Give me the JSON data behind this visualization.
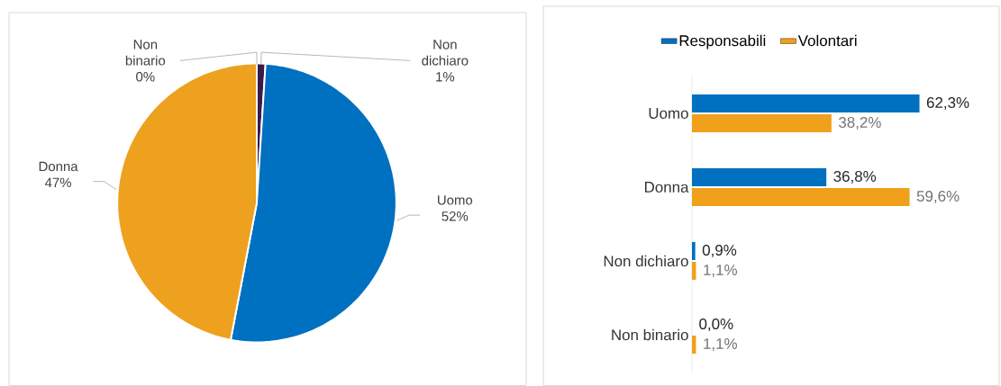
{
  "chart_data": [
    {
      "type": "pie",
      "categories": [
        "Non dichiaro",
        "Uomo",
        "Donna",
        "Non binario"
      ],
      "values": [
        1,
        52,
        47,
        0
      ],
      "colors": [
        "#3a1a4a",
        "#0070c0",
        "#eda11f",
        "#e0e0e0"
      ],
      "value_labels": [
        "1%",
        "52%",
        "47%",
        "0%"
      ]
    },
    {
      "type": "bar",
      "orientation": "horizontal",
      "categories": [
        "Uomo",
        "Donna",
        "Non dichiaro",
        "Non binario"
      ],
      "legend": "top",
      "series": [
        {
          "name": "Responsabili",
          "color": "#0070c0",
          "values": [
            62.3,
            36.8,
            0.9,
            0.0
          ],
          "value_labels": [
            "62,3%",
            "36,8%",
            "0,9%",
            "0,0%"
          ]
        },
        {
          "name": "Volontari",
          "color": "#f0a01a",
          "values": [
            38.2,
            59.6,
            1.1,
            1.1
          ],
          "value_labels": [
            "38,2%",
            "59,6%",
            "1,1%",
            "1,1%"
          ]
        }
      ]
    }
  ]
}
